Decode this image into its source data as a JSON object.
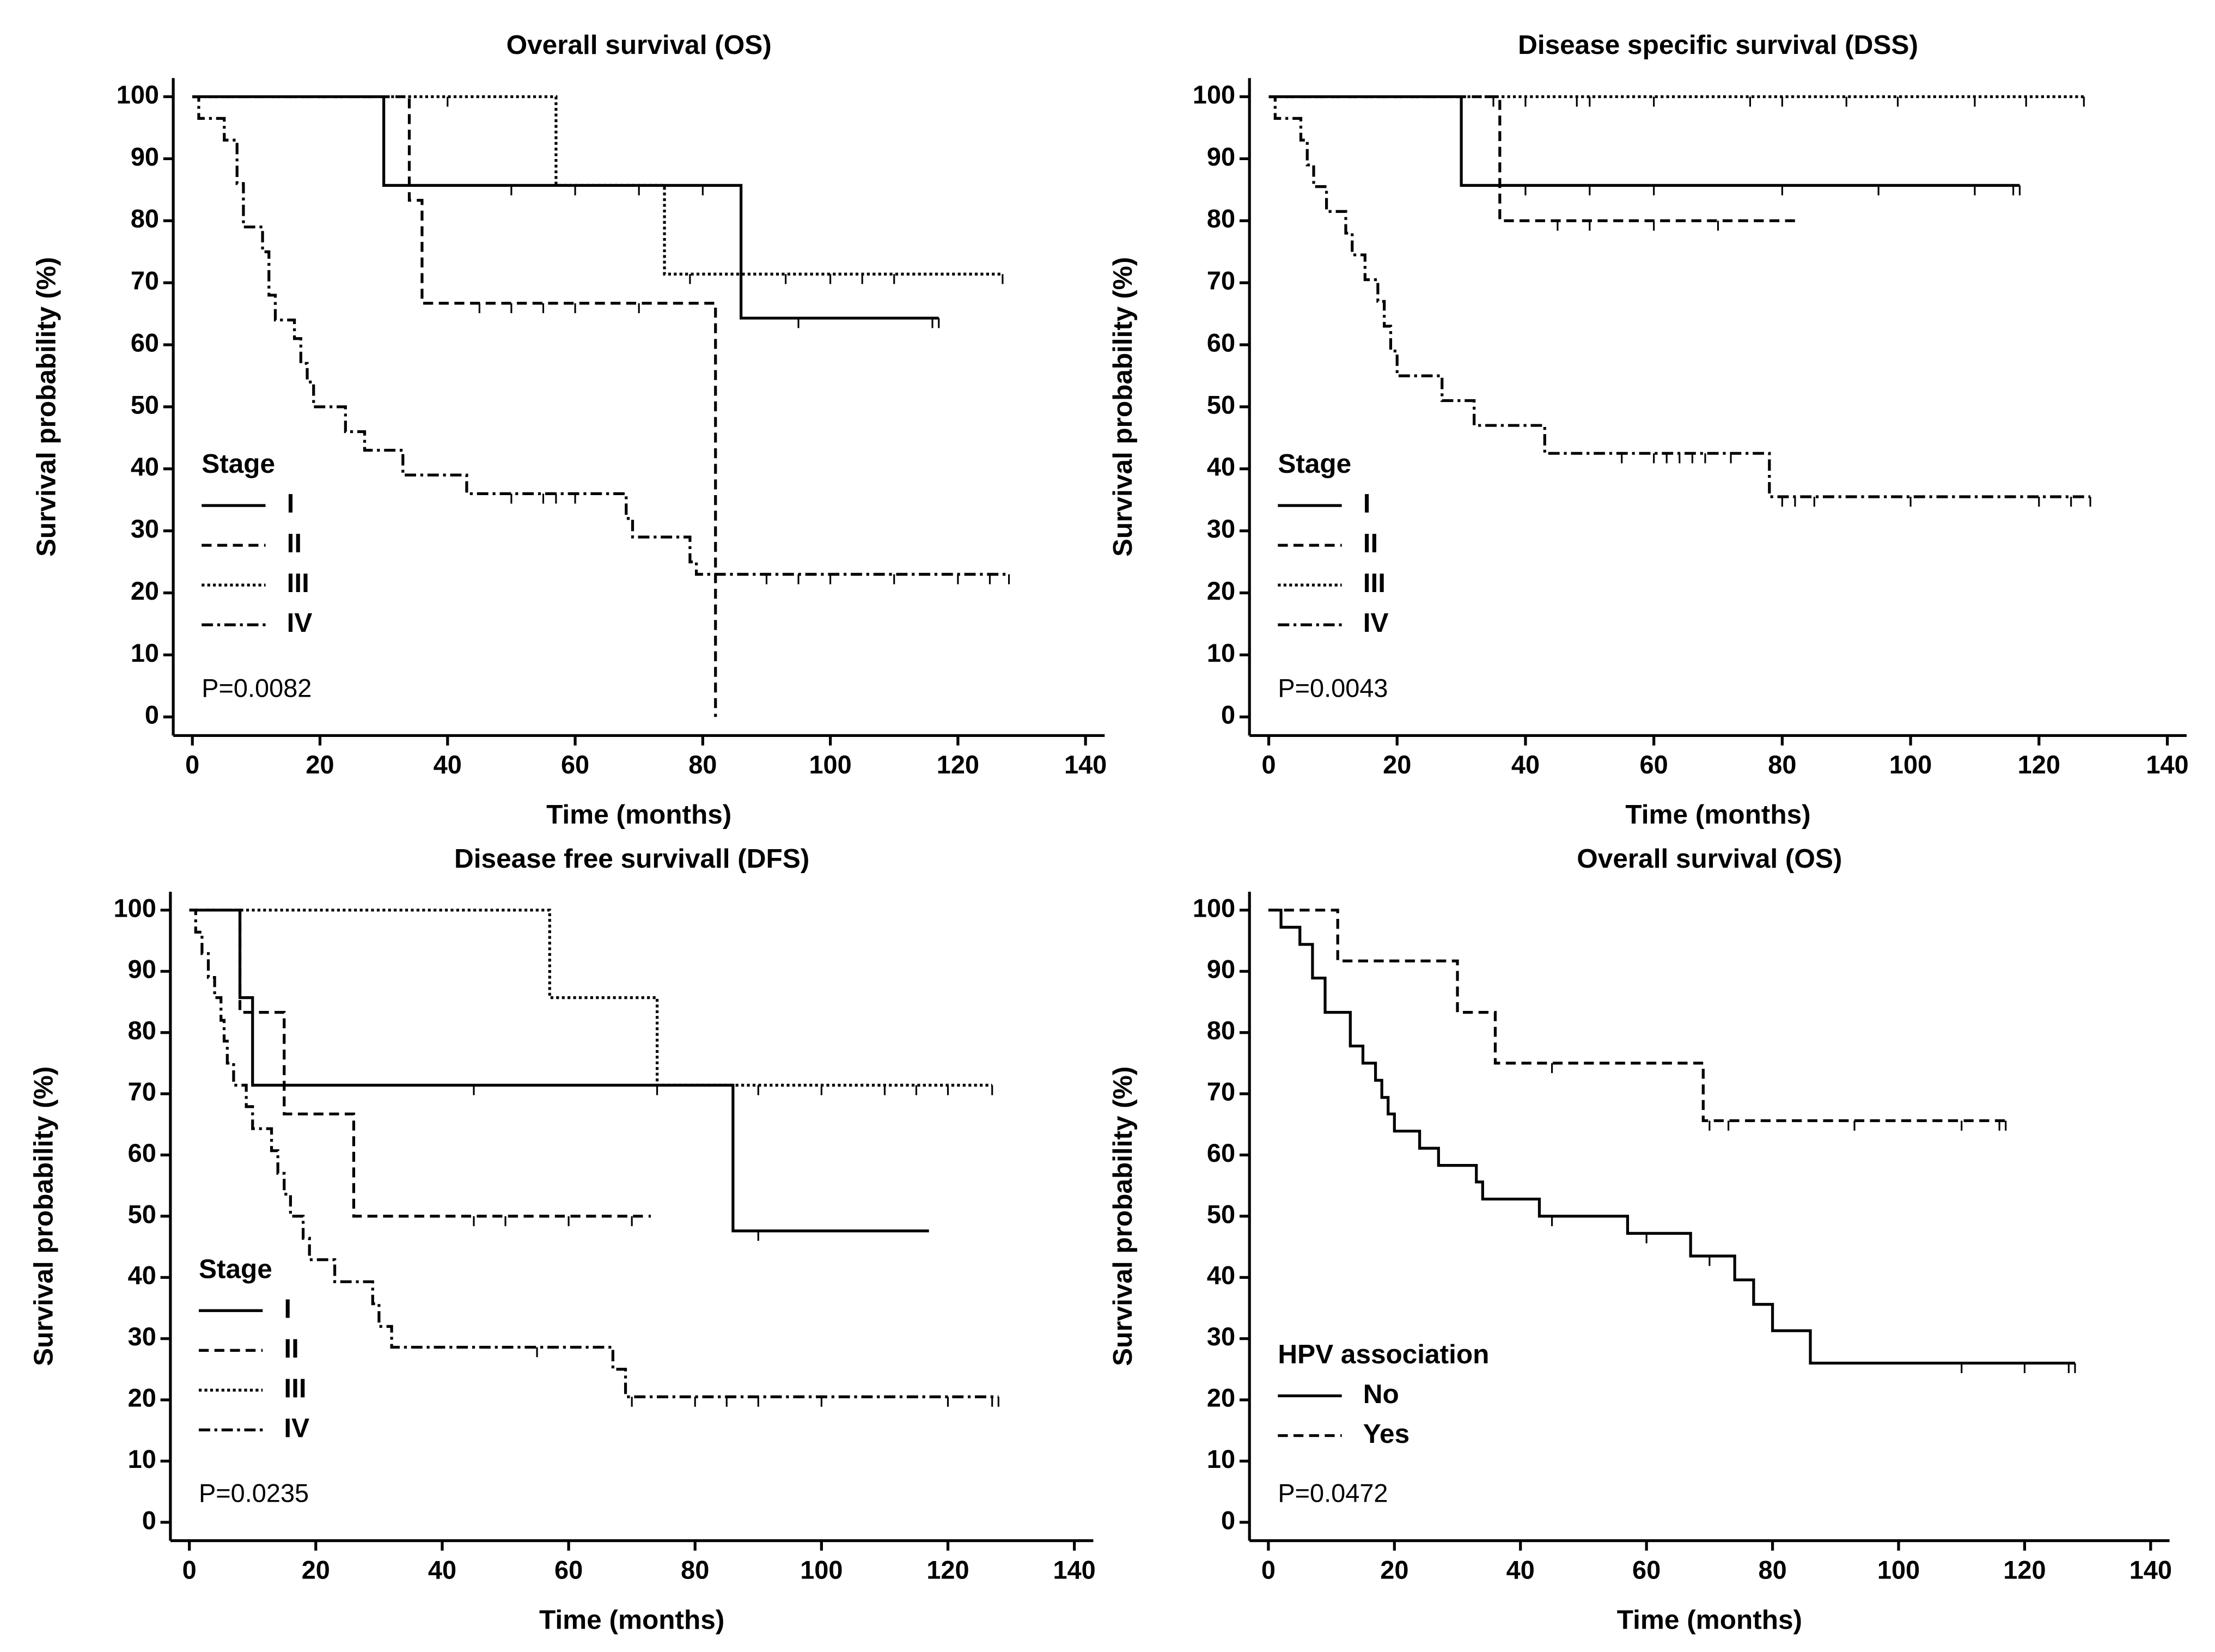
{
  "chart_data": [
    {
      "type": "step",
      "title": "Overall survival (OS)",
      "xlabel": "Time (months)",
      "ylabel": "Survival probability (%)",
      "legend_title": "Stage",
      "legend": "lower left",
      "annotation": "P=0.0082",
      "xlim": [
        -3,
        143
      ],
      "ylim": [
        -3,
        103
      ],
      "xticks": [
        0,
        20,
        40,
        60,
        80,
        100,
        120,
        140
      ],
      "yticks": [
        0,
        10,
        20,
        30,
        40,
        50,
        60,
        70,
        80,
        90,
        100
      ],
      "series": [
        {
          "name": "I",
          "color": "#000000",
          "dash": "none",
          "x": [
            0,
            30,
            86,
            117
          ],
          "values": [
            100,
            85.7,
            64.3,
            64.3
          ],
          "censored": [
            50,
            60,
            70,
            80,
            95,
            116,
            117
          ]
        },
        {
          "name": "II",
          "color": "#000000",
          "dash": "7,4",
          "x": [
            0,
            34,
            36,
            82,
            82
          ],
          "values": [
            100,
            83.3,
            66.7,
            0,
            0
          ],
          "censored": [
            45,
            50,
            55,
            60,
            70
          ]
        },
        {
          "name": "III",
          "color": "#000000",
          "dash": "2,2",
          "x": [
            0,
            57,
            74,
            127
          ],
          "values": [
            100,
            85.7,
            71.4,
            71.4
          ],
          "censored": [
            30,
            40,
            78,
            86,
            93,
            100,
            105,
            110,
            127
          ]
        },
        {
          "name": "IV",
          "color": "#000000",
          "dash": "8,3,2,3",
          "x": [
            0,
            1,
            5,
            7,
            8,
            11,
            12,
            13,
            16,
            17,
            18,
            19,
            24,
            27,
            33,
            43,
            68,
            69,
            78,
            79,
            128
          ],
          "values": [
            100,
            96.5,
            93,
            86,
            79,
            75,
            68,
            64,
            61,
            57,
            54,
            50,
            46,
            43,
            39,
            36,
            32,
            29,
            25,
            23,
            23
          ],
          "censored": [
            50,
            55,
            57,
            60,
            90,
            95,
            100,
            110,
            120,
            125,
            128
          ]
        }
      ]
    },
    {
      "type": "step",
      "title": "Disease specific survival (DSS)",
      "xlabel": "Time (months)",
      "ylabel": "Survival probability (%)",
      "legend_title": "Stage",
      "legend": "lower left",
      "annotation": "P=0.0043",
      "xlim": [
        -3,
        143
      ],
      "ylim": [
        -3,
        103
      ],
      "xticks": [
        0,
        20,
        40,
        60,
        80,
        100,
        120,
        140
      ],
      "yticks": [
        0,
        10,
        20,
        30,
        40,
        50,
        60,
        70,
        80,
        90,
        100
      ],
      "series": [
        {
          "name": "I",
          "color": "#000000",
          "dash": "none",
          "x": [
            0,
            30,
            117
          ],
          "values": [
            100,
            85.7,
            85.7
          ],
          "censored": [
            40,
            50,
            60,
            80,
            95,
            110,
            116,
            117
          ]
        },
        {
          "name": "II",
          "color": "#000000",
          "dash": "7,4",
          "x": [
            0,
            36,
            82
          ],
          "values": [
            100,
            80,
            80
          ],
          "censored": [
            45,
            50,
            60,
            70
          ]
        },
        {
          "name": "III",
          "color": "#000000",
          "dash": "2,2",
          "x": [
            0,
            127
          ],
          "values": [
            100,
            100
          ],
          "censored": [
            35,
            40,
            48,
            50,
            60,
            75,
            80,
            90,
            98,
            110,
            118,
            127
          ]
        },
        {
          "name": "IV",
          "color": "#000000",
          "dash": "8,3,2,3",
          "x": [
            0,
            1,
            5,
            6,
            7,
            9,
            12,
            13,
            15,
            17,
            18,
            19,
            20,
            27,
            32,
            43,
            78,
            128
          ],
          "values": [
            100,
            96.5,
            93,
            89,
            85.5,
            81.5,
            78,
            74.5,
            70.5,
            67,
            63,
            59,
            55,
            51,
            47,
            42.5,
            35.5,
            35.5
          ],
          "censored": [
            55,
            60,
            62,
            64,
            66,
            68,
            72,
            80,
            82,
            85,
            100,
            120,
            125,
            128
          ]
        }
      ]
    },
    {
      "type": "step",
      "title": "Disease free survivall (DFS)",
      "xlabel": "Time (months)",
      "ylabel": "Survival probability (%)",
      "legend_title": "Stage",
      "legend": "lower left",
      "annotation": "P=0.0235",
      "xlim": [
        -3,
        143
      ],
      "ylim": [
        -3,
        103
      ],
      "xticks": [
        0,
        20,
        40,
        60,
        80,
        100,
        120,
        140
      ],
      "yticks": [
        0,
        10,
        20,
        30,
        40,
        50,
        60,
        70,
        80,
        90,
        100
      ],
      "series": [
        {
          "name": "I",
          "color": "#000000",
          "dash": "none",
          "x": [
            0,
            8,
            10,
            86,
            117
          ],
          "values": [
            100,
            85.7,
            71.4,
            47.6,
            47.6
          ],
          "censored": [
            45,
            90
          ]
        },
        {
          "name": "II",
          "color": "#000000",
          "dash": "7,4",
          "x": [
            0,
            8,
            15,
            26,
            73
          ],
          "values": [
            100,
            83.3,
            66.7,
            50,
            50
          ],
          "censored": [
            45,
            50,
            60,
            70
          ]
        },
        {
          "name": "III",
          "color": "#000000",
          "dash": "2,2",
          "x": [
            0,
            57,
            74,
            127
          ],
          "values": [
            100,
            85.7,
            71.4,
            71.4
          ],
          "censored": [
            74,
            90,
            100,
            110,
            115,
            120,
            127
          ]
        },
        {
          "name": "IV",
          "color": "#000000",
          "dash": "8,3,2,3",
          "x": [
            0,
            1,
            2,
            3,
            4,
            5,
            5.5,
            6,
            7,
            9,
            10,
            13,
            14,
            15,
            16,
            18,
            19,
            23,
            29,
            30,
            32,
            67,
            69,
            128
          ],
          "values": [
            100,
            96.4,
            92.9,
            89,
            85.7,
            82,
            78.6,
            75,
            71.4,
            67.9,
            64.3,
            60.7,
            57,
            53.6,
            50,
            46.4,
            42.9,
            39.3,
            35.7,
            32,
            28.6,
            25,
            20.5,
            20.5
          ],
          "censored": [
            55,
            70,
            80,
            85,
            90,
            100,
            120,
            127,
            128
          ]
        }
      ]
    },
    {
      "type": "step",
      "title": "Overall survival (OS)",
      "xlabel": "Time (months)",
      "ylabel": "Survival probability (%)",
      "legend_title": "HPV association",
      "legend": "lower left",
      "annotation": "P=0.0472",
      "xlim": [
        -3,
        143
      ],
      "ylim": [
        -3,
        103
      ],
      "xticks": [
        0,
        20,
        40,
        60,
        80,
        100,
        120,
        140
      ],
      "yticks": [
        0,
        10,
        20,
        30,
        40,
        50,
        60,
        70,
        80,
        90,
        100
      ],
      "series": [
        {
          "name": "No",
          "color": "#000000",
          "dash": "none",
          "x": [
            0,
            2,
            5,
            7,
            9,
            13,
            15,
            17,
            18,
            19,
            20,
            24,
            27,
            33,
            34,
            43,
            57,
            67,
            74,
            77,
            80,
            86,
            128
          ],
          "values": [
            100,
            97.2,
            94.4,
            88.9,
            83.3,
            77.8,
            75,
            72.2,
            69.4,
            66.7,
            63.9,
            61.1,
            58.3,
            55.6,
            52.8,
            50,
            47.2,
            43.5,
            39.6,
            35.6,
            31.3,
            26,
            26
          ],
          "censored": [
            45,
            60,
            70,
            110,
            120,
            127,
            128
          ]
        },
        {
          "name": "Yes",
          "color": "#000000",
          "dash": "7,4",
          "x": [
            0,
            11,
            30,
            36,
            69,
            117
          ],
          "values": [
            100,
            91.7,
            83.3,
            75,
            65.6,
            65.6
          ],
          "censored": [
            45,
            70,
            73,
            93,
            110,
            116,
            117
          ]
        }
      ]
    }
  ]
}
